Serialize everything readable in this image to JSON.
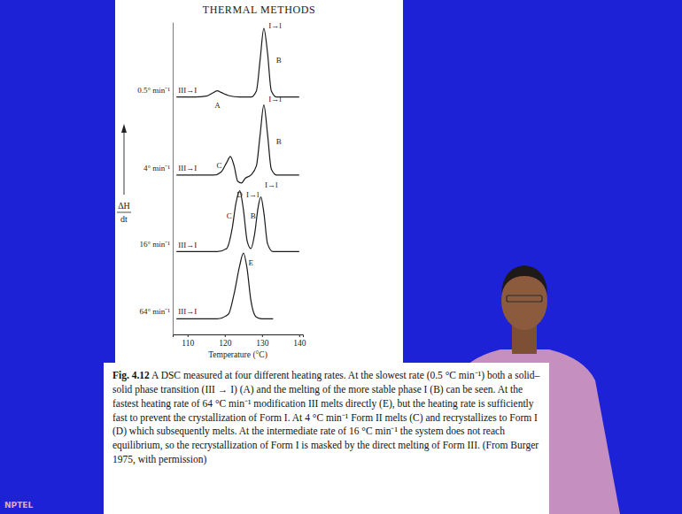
{
  "page": {
    "header": "THERMAL METHODS",
    "caption_label": "Fig. 4.12",
    "caption_text": "A DSC measured at four different heating rates. At the slowest rate (0.5 °C min⁻¹) both a solid–solid phase transition (III → I) (A) and the melting of the more stable phase I (B) can be seen. At the fastest heating rate of 64 °C min⁻¹ modification III melts directly (E), but the heating rate is sufficiently fast to prevent the crystallization of Form I. At 4 °C min⁻¹ Form II melts (C) and recrystallizes to Form I (D) which subsequently melts. At the intermediate rate of 16 °C min⁻¹ the system does not reach equilibrium, so the recrystallization of Form I is masked by the direct melting of Form III. (From Burger 1975, with permission)",
    "watermark": "NPTEL"
  },
  "chart_data": {
    "type": "line",
    "xlabel": "Temperature (°C)",
    "ylabel": [
      "ΔH",
      "dt"
    ],
    "xlim": [
      106,
      141
    ],
    "xticks": [
      110,
      120,
      130,
      140
    ],
    "ylim": [
      0,
      100
    ],
    "yticks": [],
    "tick_labels": "x",
    "series": [
      {
        "name": "0.5° min⁻¹",
        "color": "#1a1a1a",
        "line_style": "solid",
        "x": [
          107,
          112,
          115,
          117,
          118,
          119,
          121,
          124,
          127,
          128.5,
          129.5,
          130.5,
          131.5,
          132.5,
          134,
          137,
          140
        ],
        "values": [
          76,
          76,
          76.3,
          77.5,
          78,
          77.5,
          76.5,
          76,
          76,
          78,
          88,
          98,
          90,
          78,
          76,
          76,
          76
        ]
      },
      {
        "name": "4° min⁻¹",
        "color": "#1a1a1a",
        "line_style": "solid",
        "x": [
          107,
          112,
          117,
          119,
          120.5,
          121.5,
          122.5,
          123.5,
          124.5,
          125.5,
          127,
          128.5,
          129.5,
          130.5,
          131.5,
          132.5,
          134,
          137,
          140
        ],
        "values": [
          51,
          51,
          51,
          52,
          55,
          57,
          54,
          49,
          48.5,
          50,
          51,
          54,
          64,
          73.5,
          64,
          53,
          51,
          51,
          51
        ]
      },
      {
        "name": "16° min⁻¹",
        "color": "#1a1a1a",
        "line_style": "solid",
        "x": [
          107,
          112,
          118,
          120.5,
          122,
          123,
          124,
          125,
          126,
          127,
          128,
          129,
          129.7,
          130.5,
          131.5,
          133,
          137,
          140
        ],
        "values": [
          26.5,
          26.5,
          26.5,
          27.5,
          34,
          42,
          46,
          40,
          30,
          27.5,
          32,
          41,
          44,
          39,
          29,
          26.5,
          26.5,
          26.5
        ]
      },
      {
        "name": "64° min⁻¹",
        "color": "#1a1a1a",
        "line_style": "solid",
        "x": [
          107,
          112,
          118,
          121,
          122.5,
          124,
          125,
          126,
          127,
          128.5,
          130,
          133
        ],
        "values": [
          5,
          5,
          5,
          6.5,
          13,
          22,
          26,
          21,
          11,
          5.5,
          5,
          5
        ]
      }
    ],
    "annotations": [
      {
        "text": "III→I",
        "x": 110,
        "y": 77.4
      },
      {
        "text": "A",
        "x": 118,
        "y": 72.5
      },
      {
        "text": "I→l",
        "x": 133.5,
        "y": 98
      },
      {
        "text": "B",
        "x": 134.5,
        "y": 87
      },
      {
        "text": "III→I",
        "x": 110,
        "y": 52.4
      },
      {
        "text": "C",
        "x": 118.5,
        "y": 53.2
      },
      {
        "text": "D",
        "x": 124,
        "y": 44
      },
      {
        "text": "I→l",
        "x": 127.5,
        "y": 44
      },
      {
        "text": "I→l",
        "x": 133.5,
        "y": 74.5
      },
      {
        "text": "B",
        "x": 134.5,
        "y": 61
      },
      {
        "text": "III→I",
        "x": 110,
        "y": 27.9
      },
      {
        "text": "C",
        "x": 121.2,
        "y": 37
      },
      {
        "text": "B",
        "x": 127.6,
        "y": 37
      },
      {
        "text": "I→l",
        "x": 132.5,
        "y": 47
      },
      {
        "text": "III→I",
        "x": 110,
        "y": 6.4
      },
      {
        "text": "E",
        "x": 127,
        "y": 22
      }
    ]
  }
}
